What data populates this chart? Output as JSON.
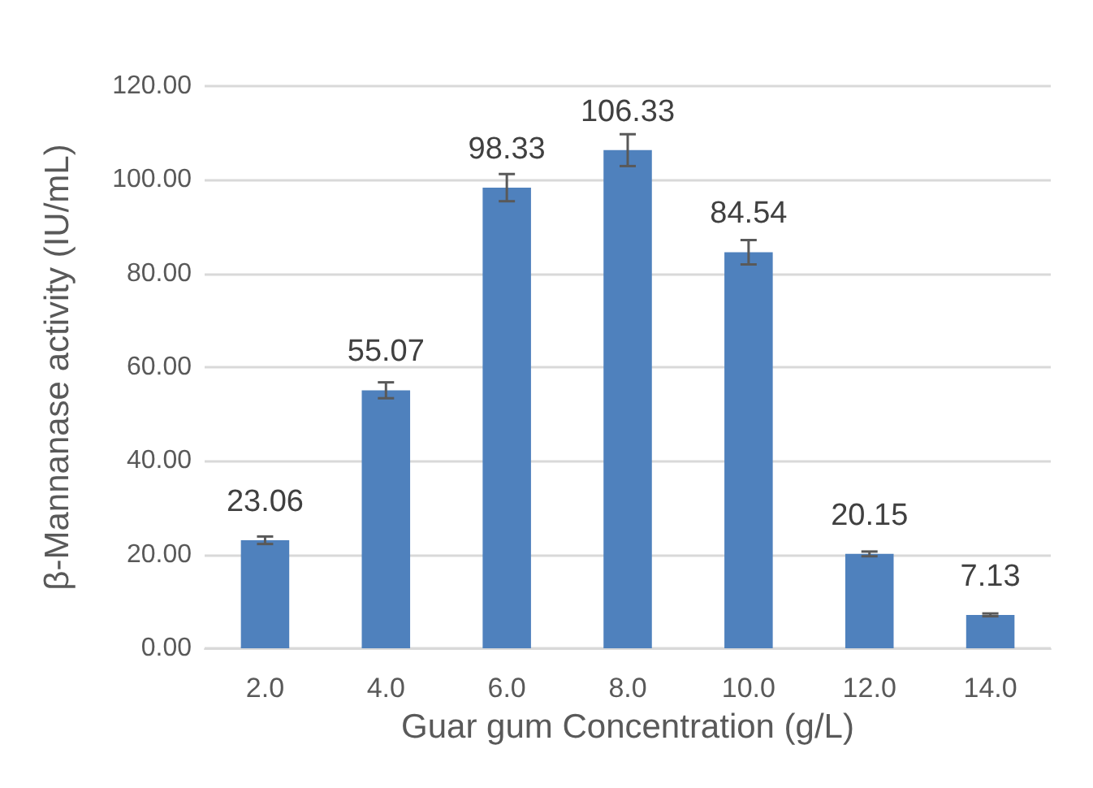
{
  "chart_data": {
    "type": "bar",
    "xlabel": "Guar gum Concentration (g/L)",
    "ylabel": "β-Mannanase activity (IU/mL)",
    "categories": [
      "2.0",
      "4.0",
      "6.0",
      "8.0",
      "10.0",
      "12.0",
      "14.0"
    ],
    "values": [
      23.06,
      55.07,
      98.33,
      106.33,
      84.54,
      20.15,
      7.13
    ],
    "errors": [
      0.8,
      1.7,
      2.9,
      3.4,
      2.6,
      0.5,
      0.3
    ],
    "color": "#4f81bd",
    "data_labels": true,
    "grid": "y",
    "ylim": [
      0,
      120
    ],
    "yticks": [
      {
        "value": 0,
        "label": "0.00"
      },
      {
        "value": 20,
        "label": "20.00"
      },
      {
        "value": 40,
        "label": "40.00"
      },
      {
        "value": 60,
        "label": "60.00"
      },
      {
        "value": 80,
        "label": "80.00"
      },
      {
        "value": 100,
        "label": "100.00"
      },
      {
        "value": 120,
        "label": "120.00"
      }
    ]
  }
}
